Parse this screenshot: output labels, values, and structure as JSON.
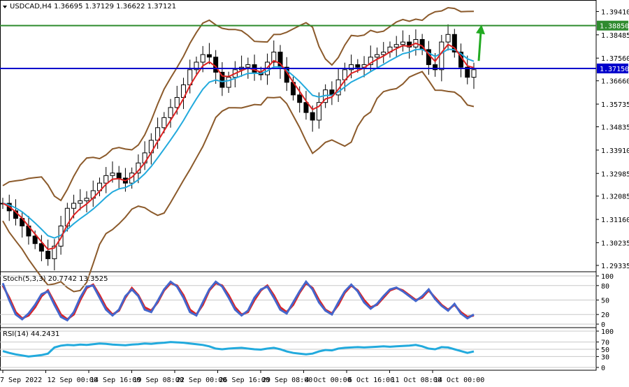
{
  "chart_data": [
    {
      "type": "candlestick",
      "header": {
        "menu_icon": "triangle-down-icon",
        "symbol": "USDCAD,H4",
        "open": "1.36695",
        "high": "1.37129",
        "low": "1.36622",
        "close": "1.37121"
      },
      "ylim": [
        1.2925,
        1.397
      ],
      "price_ticks": [
        "1.39410",
        "1.38485",
        "1.37560",
        "1.36660",
        "1.35735",
        "1.34835",
        "1.33910",
        "1.32985",
        "1.32085",
        "1.31160",
        "1.30235",
        "1.29335"
      ],
      "x_labels": [
        "7 Sep 2022",
        "12 Sep 00:00",
        "14 Sep 16:00",
        "19 Sep 08:00",
        "22 Sep 00:00",
        "26 Sep 16:00",
        "29 Sep 08:00",
        "4 Oct 00:00",
        "6 Oct 16:00",
        "11 Oct 08:00",
        "14 Oct 00:00"
      ],
      "horizontal_lines": [
        {
          "value": 1.3885,
          "label": "1.38850",
          "color": "#2e8b2e"
        },
        {
          "value": 1.3715,
          "label": "1.37150",
          "color": "#0000cc"
        }
      ],
      "close_path": [
        1.318,
        1.315,
        1.312,
        1.309,
        1.305,
        1.302,
        1.299,
        1.296,
        1.301,
        1.309,
        1.316,
        1.318,
        1.319,
        1.32,
        1.323,
        1.326,
        1.329,
        1.33,
        1.328,
        1.326,
        1.33,
        1.334,
        1.338,
        1.343,
        1.348,
        1.352,
        1.356,
        1.36,
        1.365,
        1.371,
        1.374,
        1.377,
        1.376,
        1.37,
        1.364,
        1.368,
        1.371,
        1.372,
        1.373,
        1.37,
        1.369,
        1.374,
        1.378,
        1.372,
        1.366,
        1.361,
        1.358,
        1.354,
        1.351,
        1.358,
        1.363,
        1.361,
        1.367,
        1.371,
        1.373,
        1.372,
        1.373,
        1.376,
        1.377,
        1.378,
        1.38,
        1.381,
        1.382,
        1.38,
        1.383,
        1.379,
        1.373,
        1.371,
        1.382,
        1.385,
        1.378,
        1.372,
        1.368,
        1.371
      ],
      "colors": {
        "ema_fast": "#dd2222",
        "ema_slow": "#22aadd",
        "bands": "#8b5a2b",
        "arrow": "#22aa22",
        "grid": "#c8c8c8"
      }
    },
    {
      "type": "line",
      "title": "Stoch(5,3,3) 20.7742 13.3525",
      "ylim": [
        0,
        100
      ],
      "levels": [
        "100",
        "80",
        "50",
        "20",
        "0"
      ],
      "series": [
        {
          "color": "#dd2222",
          "values": [
            80,
            55,
            25,
            12,
            18,
            35,
            58,
            70,
            45,
            20,
            10,
            20,
            50,
            75,
            82,
            60,
            35,
            20,
            28,
            55,
            75,
            60,
            35,
            28,
            45,
            70,
            85,
            80,
            60,
            30,
            20,
            40,
            70,
            85,
            80,
            60,
            35,
            20,
            25,
            50,
            70,
            80,
            60,
            35,
            25,
            40,
            65,
            85,
            75,
            50,
            30,
            22,
            40,
            65,
            80,
            70,
            50,
            35,
            40,
            55,
            70,
            75,
            70,
            60,
            50,
            55,
            70,
            55,
            40,
            30,
            40,
            25,
            15,
            18
          ]
        },
        {
          "color": "#4466cc",
          "values": [
            85,
            50,
            20,
            10,
            22,
            40,
            62,
            68,
            40,
            15,
            8,
            25,
            55,
            78,
            80,
            55,
            30,
            18,
            30,
            58,
            72,
            58,
            30,
            25,
            48,
            72,
            88,
            78,
            55,
            25,
            18,
            45,
            72,
            88,
            78,
            55,
            30,
            18,
            28,
            55,
            72,
            78,
            55,
            30,
            22,
            45,
            68,
            88,
            72,
            45,
            28,
            20,
            45,
            68,
            82,
            68,
            45,
            32,
            42,
            58,
            72,
            76,
            68,
            58,
            48,
            58,
            72,
            52,
            38,
            28,
            42,
            22,
            12,
            20
          ]
        }
      ]
    },
    {
      "type": "line",
      "title": "RSI(14) 44.2431",
      "ylim": [
        0,
        100
      ],
      "levels": [
        "100",
        "70",
        "50",
        "30",
        "0"
      ],
      "series": [
        {
          "color": "#22aadd",
          "values": [
            45,
            40,
            36,
            33,
            30,
            32,
            34,
            38,
            55,
            60,
            62,
            61,
            63,
            62,
            64,
            66,
            65,
            63,
            62,
            61,
            63,
            64,
            66,
            65,
            67,
            68,
            70,
            69,
            68,
            66,
            64,
            62,
            58,
            52,
            50,
            52,
            53,
            54,
            52,
            50,
            49,
            52,
            54,
            50,
            44,
            40,
            38,
            36,
            38,
            44,
            48,
            47,
            52,
            54,
            55,
            56,
            55,
            56,
            57,
            58,
            57,
            58,
            59,
            60,
            62,
            58,
            52,
            50,
            56,
            55,
            50,
            45,
            40,
            44
          ]
        }
      ]
    }
  ]
}
